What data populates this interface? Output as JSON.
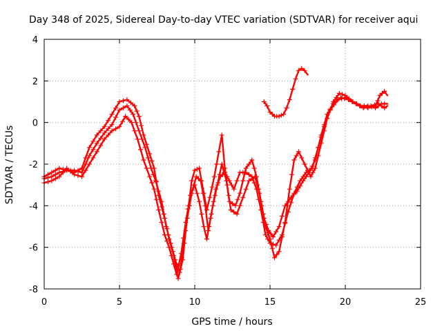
{
  "chart_data": {
    "type": "scatter",
    "title": "Day 348 of 2025, Sidereal Day-to-day VTEC variation (SDTVAR) for receiver aqui",
    "xlabel": "GPS time / hours",
    "ylabel": "SDTVAR / TECUs",
    "xlim": [
      0,
      25
    ],
    "ylim": [
      -8,
      4
    ],
    "xticks": [
      "0",
      "5",
      "10",
      "15",
      "20",
      "25"
    ],
    "yticks": [
      "-8",
      "-6",
      "-4",
      "-2",
      "0",
      "2",
      "4"
    ],
    "grid": true,
    "marker": "+",
    "color": "#ff0000",
    "series": [
      {
        "points": [
          [
            0,
            -2.6
          ],
          [
            0.5,
            -2.4
          ],
          [
            1,
            -2.2
          ],
          [
            1.5,
            -2.3
          ],
          [
            2,
            -2.4
          ],
          [
            2.5,
            -2.2
          ],
          [
            3,
            -1.2
          ],
          [
            3.5,
            -0.6
          ],
          [
            4,
            -0.2
          ],
          [
            4.5,
            0.4
          ],
          [
            5,
            1.0
          ],
          [
            5.5,
            1.1
          ],
          [
            6,
            0.8
          ],
          [
            6.3,
            0.3
          ],
          [
            6.6,
            -0.6
          ],
          [
            7,
            -1.5
          ],
          [
            7.3,
            -2.2
          ],
          [
            7.6,
            -3.5
          ],
          [
            8,
            -4.6
          ],
          [
            8.3,
            -5.6
          ],
          [
            8.6,
            -6.4
          ],
          [
            8.9,
            -7.5
          ],
          [
            9.2,
            -6.6
          ],
          [
            9.4,
            -5.2
          ],
          [
            9.6,
            -4.0
          ],
          [
            9.8,
            -2.8
          ],
          [
            10,
            -2.3
          ],
          [
            10.3,
            -2.2
          ],
          [
            10.6,
            -3.4
          ],
          [
            10.8,
            -4.2
          ],
          [
            11,
            -3.6
          ],
          [
            11.3,
            -2.6
          ],
          [
            11.6,
            -1.4
          ],
          [
            11.8,
            -0.6
          ],
          [
            12,
            -2.2
          ],
          [
            12.3,
            -3.8
          ],
          [
            12.7,
            -4.0
          ],
          [
            13,
            -3.4
          ],
          [
            13.4,
            -2.2
          ],
          [
            13.8,
            -1.8
          ],
          [
            14.1,
            -2.6
          ],
          [
            14.4,
            -3.8
          ],
          [
            14.7,
            -5.0
          ],
          [
            15,
            -5.6
          ],
          [
            15.3,
            -6.5
          ],
          [
            15.6,
            -6.2
          ],
          [
            16,
            -4.8
          ],
          [
            16.3,
            -3.2
          ],
          [
            16.6,
            -1.8
          ],
          [
            16.9,
            -1.4
          ],
          [
            17.3,
            -2.0
          ],
          [
            17.7,
            -2.6
          ],
          [
            18,
            -2.2
          ],
          [
            18.4,
            -1.0
          ],
          [
            18.8,
            0.2
          ],
          [
            19.2,
            1.0
          ],
          [
            19.6,
            1.4
          ],
          [
            20,
            1.3
          ],
          [
            20.5,
            1.0
          ],
          [
            21,
            0.8
          ],
          [
            21.5,
            0.7
          ],
          [
            22,
            0.8
          ],
          [
            22.3,
            1.3
          ],
          [
            22.6,
            1.5
          ],
          [
            22.8,
            1.3
          ]
        ]
      },
      {
        "points": [
          [
            0,
            -2.9
          ],
          [
            0.5,
            -2.8
          ],
          [
            1,
            -2.6
          ],
          [
            1.5,
            -2.2
          ],
          [
            2,
            -2.5
          ],
          [
            2.5,
            -2.6
          ],
          [
            3,
            -2.0
          ],
          [
            3.5,
            -1.4
          ],
          [
            4,
            -0.8
          ],
          [
            4.5,
            -0.4
          ],
          [
            5,
            -0.2
          ],
          [
            5.4,
            0.3
          ],
          [
            5.8,
            0.0
          ],
          [
            6.2,
            -0.8
          ],
          [
            6.6,
            -1.8
          ],
          [
            7,
            -2.6
          ],
          [
            7.3,
            -3.2
          ],
          [
            7.6,
            -4.2
          ],
          [
            8,
            -5.4
          ],
          [
            8.3,
            -6.0
          ],
          [
            8.6,
            -6.8
          ],
          [
            8.8,
            -7.3
          ],
          [
            9.1,
            -6.3
          ],
          [
            9.4,
            -4.8
          ],
          [
            9.7,
            -3.5
          ],
          [
            10,
            -3.0
          ],
          [
            10.3,
            -3.8
          ],
          [
            10.6,
            -5.0
          ],
          [
            10.8,
            -5.6
          ],
          [
            11.1,
            -4.4
          ],
          [
            11.4,
            -3.2
          ],
          [
            11.7,
            -2.6
          ],
          [
            12,
            -2.4
          ],
          [
            12.3,
            -2.8
          ],
          [
            12.6,
            -3.2
          ],
          [
            13,
            -2.4
          ],
          [
            13.4,
            -2.4
          ],
          [
            13.8,
            -2.6
          ],
          [
            14.1,
            -3.2
          ],
          [
            14.4,
            -4.2
          ],
          [
            14.7,
            -5.4
          ],
          [
            15,
            -5.8
          ],
          [
            15.4,
            -5.9
          ],
          [
            15.8,
            -5.4
          ],
          [
            16.2,
            -4.3
          ],
          [
            16.6,
            -3.4
          ],
          [
            17,
            -2.8
          ],
          [
            17.4,
            -2.4
          ],
          [
            17.8,
            -2.2
          ],
          [
            18.2,
            -1.2
          ],
          [
            18.6,
            -0.2
          ],
          [
            19,
            0.6
          ],
          [
            19.5,
            1.1
          ],
          [
            20,
            1.2
          ],
          [
            20.5,
            1.0
          ],
          [
            21,
            0.8
          ],
          [
            21.5,
            0.8
          ],
          [
            22,
            0.7
          ],
          [
            22.4,
            0.9
          ],
          [
            22.8,
            0.9
          ]
        ]
      },
      {
        "points": [
          [
            0,
            -2.7
          ],
          [
            0.5,
            -2.6
          ],
          [
            1,
            -2.4
          ],
          [
            1.5,
            -2.3
          ],
          [
            2,
            -2.3
          ],
          [
            2.5,
            -2.4
          ],
          [
            3,
            -1.6
          ],
          [
            3.5,
            -1.0
          ],
          [
            4,
            -0.5
          ],
          [
            4.5,
            -0.1
          ],
          [
            5,
            0.6
          ],
          [
            5.5,
            0.8
          ],
          [
            5.9,
            0.4
          ],
          [
            6.3,
            -0.4
          ],
          [
            6.7,
            -1.2
          ],
          [
            7.1,
            -2.2
          ],
          [
            7.4,
            -2.8
          ],
          [
            7.8,
            -3.8
          ],
          [
            8.1,
            -5.0
          ],
          [
            8.4,
            -5.8
          ],
          [
            8.7,
            -6.6
          ],
          [
            9,
            -7.2
          ],
          [
            9.3,
            -5.8
          ],
          [
            9.5,
            -4.6
          ],
          [
            9.8,
            -3.4
          ],
          [
            10.1,
            -2.6
          ],
          [
            10.4,
            -2.8
          ],
          [
            10.7,
            -4.0
          ],
          [
            10.9,
            -5.2
          ],
          [
            11.2,
            -4.0
          ],
          [
            11.5,
            -3.0
          ],
          [
            11.8,
            -2.0
          ],
          [
            12.1,
            -2.8
          ],
          [
            12.4,
            -4.2
          ],
          [
            12.8,
            -4.4
          ],
          [
            13.2,
            -3.6
          ],
          [
            13.6,
            -2.8
          ],
          [
            14,
            -2.6
          ],
          [
            14.3,
            -3.4
          ],
          [
            14.6,
            -4.6
          ],
          [
            14.9,
            -5.2
          ],
          [
            15.2,
            -5.5
          ],
          [
            15.6,
            -5.0
          ],
          [
            16,
            -4.0
          ],
          [
            16.4,
            -3.6
          ],
          [
            16.8,
            -3.3
          ],
          [
            17.2,
            -2.8
          ],
          [
            17.6,
            -2.4
          ],
          [
            18,
            -1.8
          ],
          [
            18.4,
            -0.6
          ],
          [
            18.8,
            0.4
          ],
          [
            19.2,
            0.9
          ],
          [
            19.7,
            1.2
          ],
          [
            20.2,
            1.1
          ],
          [
            20.7,
            0.9
          ],
          [
            21.2,
            0.7
          ],
          [
            21.7,
            0.8
          ],
          [
            22.2,
            0.9
          ],
          [
            22.6,
            0.7
          ],
          [
            22.8,
            0.8
          ]
        ]
      },
      {
        "points": [
          [
            14.6,
            1.0
          ],
          [
            14.8,
            0.8
          ],
          [
            15,
            0.5
          ],
          [
            15.3,
            0.3
          ],
          [
            15.6,
            0.3
          ],
          [
            15.9,
            0.4
          ],
          [
            16.1,
            0.7
          ],
          [
            16.3,
            1.1
          ],
          [
            16.5,
            1.6
          ],
          [
            16.7,
            2.1
          ],
          [
            16.9,
            2.5
          ],
          [
            17.1,
            2.6
          ],
          [
            17.3,
            2.5
          ],
          [
            17.5,
            2.3
          ]
        ]
      }
    ]
  }
}
